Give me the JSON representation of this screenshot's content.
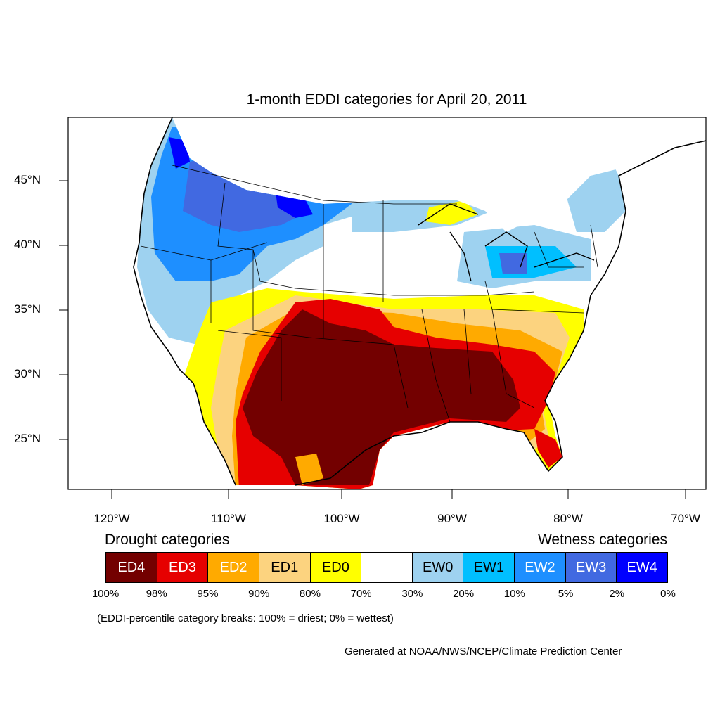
{
  "title": "1-month EDDI categories for April 20, 2011",
  "lat_labels": [
    "45°N",
    "40°N",
    "35°N",
    "30°N",
    "25°N"
  ],
  "lon_labels": [
    "120°W",
    "110°W",
    "100°W",
    "90°W",
    "80°W",
    "70°W"
  ],
  "legend": {
    "drought_heading": "Drought categories",
    "wetness_heading": "Wetness categories",
    "categories": [
      {
        "label": "ED4",
        "color": "#730000",
        "text_color": "#ffffff"
      },
      {
        "label": "ED3",
        "color": "#e60000",
        "text_color": "#ffffff"
      },
      {
        "label": "ED2",
        "color": "#ffaa00",
        "text_color": "#ffffff"
      },
      {
        "label": "ED1",
        "color": "#fcd37f",
        "text_color": "#000000"
      },
      {
        "label": "ED0",
        "color": "#ffff00",
        "text_color": "#000000"
      },
      {
        "label": "",
        "color": "#ffffff",
        "text_color": "#000000"
      },
      {
        "label": "EW0",
        "color": "#9ed2f0",
        "text_color": "#000000"
      },
      {
        "label": "EW1",
        "color": "#00bfff",
        "text_color": "#000000"
      },
      {
        "label": "EW2",
        "color": "#1e8fff",
        "text_color": "#ffffff"
      },
      {
        "label": "EW3",
        "color": "#4169e1",
        "text_color": "#ffffff"
      },
      {
        "label": "EW4",
        "color": "#0000ff",
        "text_color": "#ffffff"
      }
    ],
    "percentiles": [
      "100%",
      "98%",
      "95%",
      "90%",
      "80%",
      "70%",
      "30%",
      "20%",
      "10%",
      "5%",
      "2%",
      "0%"
    ]
  },
  "note": "(EDDI-percentile category breaks: 100% = driest; 0% = wettest)",
  "credit": "Generated at NOAA/NWS/NCEP/Climate Prediction Center"
}
